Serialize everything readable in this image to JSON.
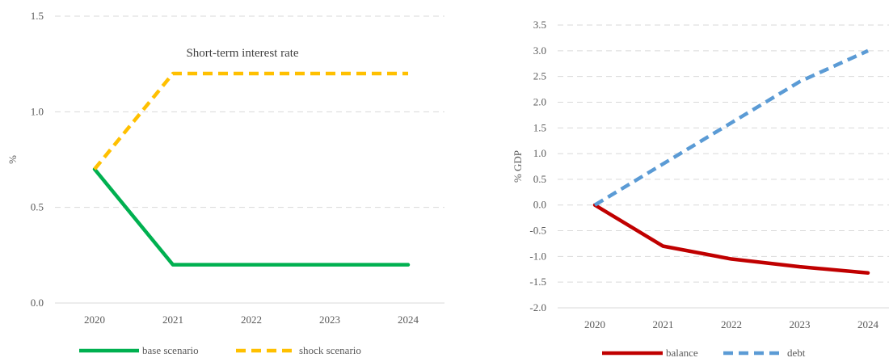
{
  "chart_data": [
    {
      "type": "line",
      "title": "Short-term interest rate",
      "xlabel": "",
      "ylabel": "%",
      "categories": [
        "2020",
        "2021",
        "2022",
        "2023",
        "2024"
      ],
      "ylim": [
        0,
        1.5
      ],
      "yticks": [
        "0.0",
        "0.5",
        "1.0",
        "1.5"
      ],
      "grid": true,
      "legend_position": "bottom",
      "series": [
        {
          "name": "base scenario",
          "values": [
            0.7,
            0.2,
            0.2,
            0.2,
            0.2
          ],
          "color": "#00b050",
          "style": "solid"
        },
        {
          "name": "shock scenario",
          "values": [
            0.7,
            1.2,
            1.2,
            1.2,
            1.2
          ],
          "color": "#ffc000",
          "style": "dashed"
        }
      ]
    },
    {
      "type": "line",
      "title": "",
      "xlabel": "",
      "ylabel": "% GDP",
      "categories": [
        "2020",
        "2021",
        "2022",
        "2023",
        "2024"
      ],
      "ylim": [
        -2.0,
        3.5
      ],
      "yticks": [
        "-2.0",
        "-1.5",
        "-1.0",
        "-0.5",
        "0.0",
        "0.5",
        "1.0",
        "1.5",
        "2.0",
        "2.5",
        "3.0",
        "3.5"
      ],
      "grid": true,
      "legend_position": "bottom",
      "series": [
        {
          "name": "balance",
          "values": [
            0.0,
            -0.8,
            -1.05,
            -1.2,
            -1.32
          ],
          "color": "#c00000",
          "style": "solid"
        },
        {
          "name": "debt",
          "values": [
            0.0,
            0.8,
            1.6,
            2.4,
            3.0
          ],
          "color": "#5b9bd5",
          "style": "dashed"
        }
      ]
    }
  ]
}
